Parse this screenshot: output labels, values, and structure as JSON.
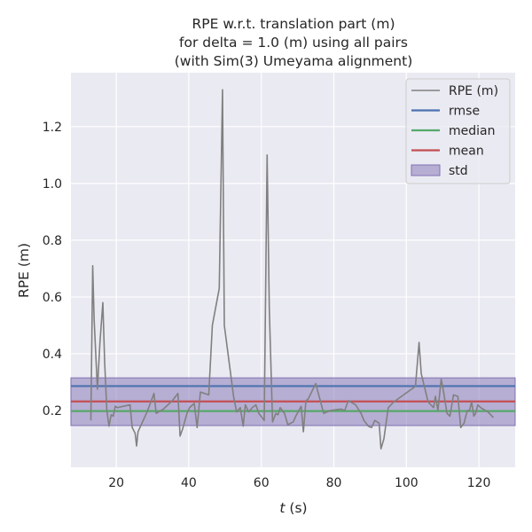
{
  "chart_data": {
    "type": "line",
    "title_lines": [
      "RPE w.r.t. translation part (m)",
      "for delta = 1.0 (m) using all pairs",
      "(with Sim(3) Umeyama alignment)"
    ],
    "xlabel_italic": "t",
    "xlabel_unit": " (s)",
    "ylabel": "RPE (m)",
    "xlim": [
      7.5,
      130
    ],
    "ylim": [
      0.0,
      1.39
    ],
    "xticks": [
      20,
      40,
      60,
      80,
      100,
      120
    ],
    "yticks": [
      0.2,
      0.4,
      0.6,
      0.8,
      1.0,
      1.2
    ],
    "ytick_labels": [
      "0.2",
      "0.4",
      "0.6",
      "0.8",
      "1.0",
      "1.2"
    ],
    "grid": true,
    "legend_position": "upper right",
    "series": [
      {
        "name": "RPE (m)",
        "color": "#808080",
        "x": [
          13.0,
          13.5,
          13.9,
          14.8,
          15.5,
          16.3,
          16.8,
          17.4,
          18.0,
          18.6,
          19.2,
          19.7,
          20.3,
          22.0,
          23.8,
          24.4,
          25.2,
          25.6,
          26.0,
          28.5,
          30.4,
          31.0,
          33.0,
          35.5,
          37.0,
          37.6,
          38.3,
          39.5,
          40.2,
          41.5,
          42.3,
          43.2,
          45.5,
          46.5,
          48.4,
          49.3,
          49.8,
          52.4,
          53.2,
          54.2,
          55.0,
          55.6,
          56.5,
          57.5,
          58.5,
          59.3,
          60.8,
          61.6,
          62.2,
          63.1,
          64.0,
          64.6,
          65.2,
          66.4,
          67.3,
          68.8,
          69.5,
          71.0,
          71.6,
          72.3,
          72.9,
          75.0,
          77.2,
          79.0,
          82.0,
          83.0,
          84.0,
          86.0,
          87.5,
          88.3,
          89.5,
          90.4,
          91.3,
          92.5,
          93.0,
          93.8,
          95.0,
          96.5,
          102.5,
          103.5,
          104.1,
          106.0,
          107.5,
          108.0,
          108.7,
          109.6,
          110.2,
          111.2,
          112.0,
          113.0,
          114.2,
          115.0,
          115.9,
          116.8,
          117.4,
          118.0,
          118.6,
          119.1,
          119.7,
          120.5,
          122.5,
          124.0
        ],
        "y": [
          0.165,
          0.71,
          0.52,
          0.275,
          0.44,
          0.58,
          0.37,
          0.2,
          0.145,
          0.185,
          0.18,
          0.215,
          0.21,
          0.215,
          0.22,
          0.14,
          0.12,
          0.075,
          0.125,
          0.195,
          0.26,
          0.19,
          0.205,
          0.235,
          0.26,
          0.11,
          0.135,
          0.19,
          0.21,
          0.225,
          0.14,
          0.265,
          0.255,
          0.5,
          0.63,
          1.33,
          0.5,
          0.245,
          0.195,
          0.21,
          0.145,
          0.22,
          0.195,
          0.21,
          0.22,
          0.19,
          0.165,
          1.1,
          0.56,
          0.16,
          0.19,
          0.185,
          0.21,
          0.19,
          0.15,
          0.16,
          0.18,
          0.215,
          0.125,
          0.235,
          0.24,
          0.295,
          0.19,
          0.2,
          0.205,
          0.2,
          0.235,
          0.22,
          0.19,
          0.165,
          0.145,
          0.14,
          0.165,
          0.155,
          0.065,
          0.1,
          0.21,
          0.23,
          0.285,
          0.44,
          0.33,
          0.23,
          0.21,
          0.25,
          0.2,
          0.31,
          0.27,
          0.19,
          0.18,
          0.255,
          0.25,
          0.14,
          0.155,
          0.2,
          0.2,
          0.23,
          0.18,
          0.19,
          0.22,
          0.21,
          0.195,
          0.175
        ]
      },
      {
        "name": "rmse",
        "color": "#4c72b0",
        "value": 0.286
      },
      {
        "name": "median",
        "color": "#55a868",
        "value": 0.198
      },
      {
        "name": "mean",
        "color": "#c44e52",
        "value": 0.232
      },
      {
        "name": "std",
        "color": "#8172b3",
        "range": [
          0.147,
          0.315
        ]
      }
    ]
  }
}
